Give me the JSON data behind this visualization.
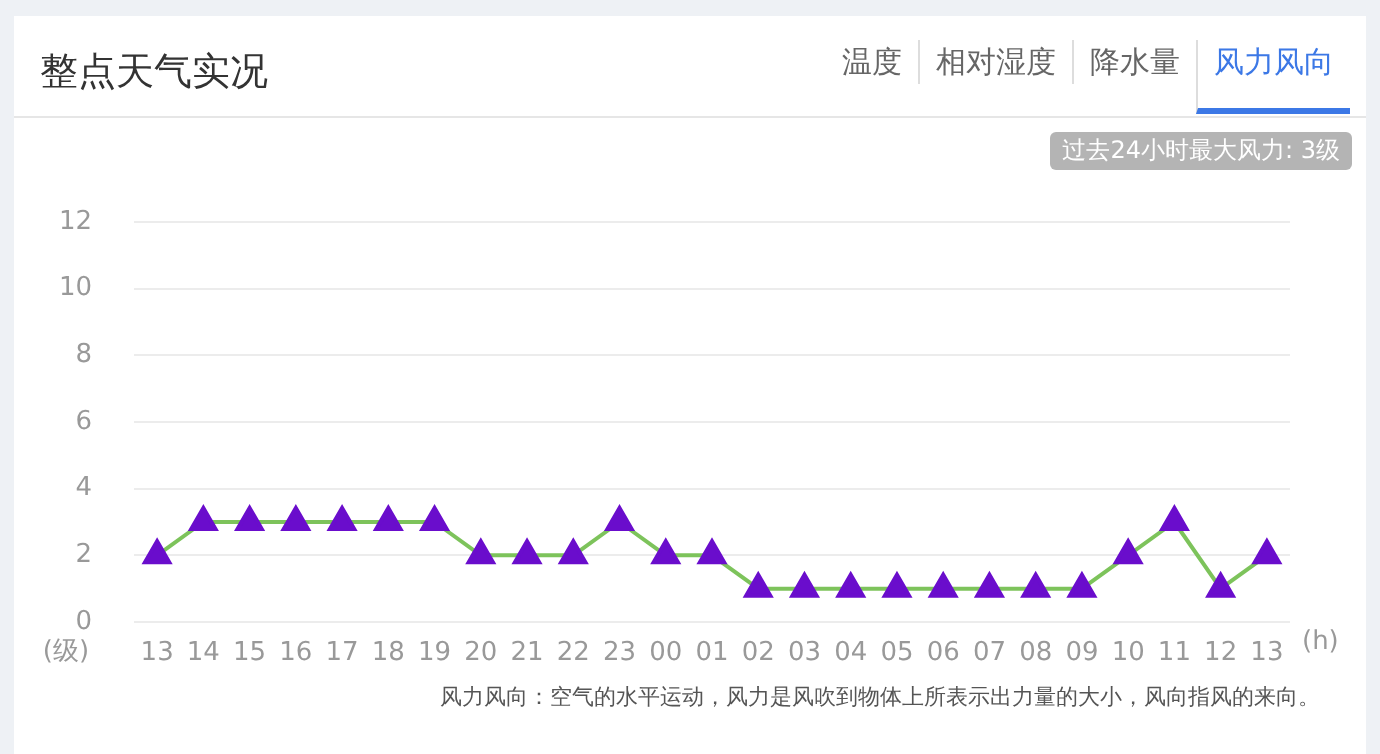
{
  "chart_data": {
    "type": "line",
    "title": "整点天气实况",
    "xlabel": "(h)",
    "ylabel": "(级)",
    "annotations": [
      "温度",
      "相对湿度",
      "降水量",
      "风力风向",
      "过去24小时最大风力: 3级",
      "风力风向：空气的水平运动，风力是风吹到物体上所表示出力量的大小，风向指风的来向。"
    ],
    "categories": [
      "13",
      "14",
      "15",
      "16",
      "17",
      "18",
      "19",
      "20",
      "21",
      "22",
      "23",
      "00",
      "01",
      "02",
      "03",
      "04",
      "05",
      "06",
      "07",
      "08",
      "09",
      "10",
      "11",
      "12",
      "13"
    ],
    "series": [
      {
        "color": "#7dc35b",
        "colors": [
          "#6a0dcc",
          "#6a0dcc",
          "#6a0dcc",
          "#6a0dcc",
          "#6a0dcc",
          "#6a0dcc",
          "#6a0dcc",
          "#6a0dcc",
          "#6a0dcc",
          "#6a0dcc",
          "#6a0dcc",
          "#6a0dcc",
          "#6a0dcc",
          "#6a0dcc",
          "#6a0dcc",
          "#6a0dcc",
          "#6a0dcc",
          "#6a0dcc",
          "#6a0dcc",
          "#6a0dcc",
          "#6a0dcc",
          "#6a0dcc",
          "#6a0dcc",
          "#6a0dcc",
          "#6a0dcc"
        ],
        "values": [
          2,
          3,
          3,
          3,
          3,
          3,
          3,
          2,
          2,
          2,
          3,
          2,
          2,
          1,
          1,
          1,
          1,
          1,
          1,
          1,
          1,
          2,
          3,
          1,
          2
        ]
      }
    ],
    "ylim": [
      0,
      12
    ],
    "yticks": [
      0,
      2,
      4,
      6,
      8,
      10,
      12
    ],
    "grid": "y",
    "legend": false,
    "marker": "triangle",
    "line_style": "solid"
  }
}
